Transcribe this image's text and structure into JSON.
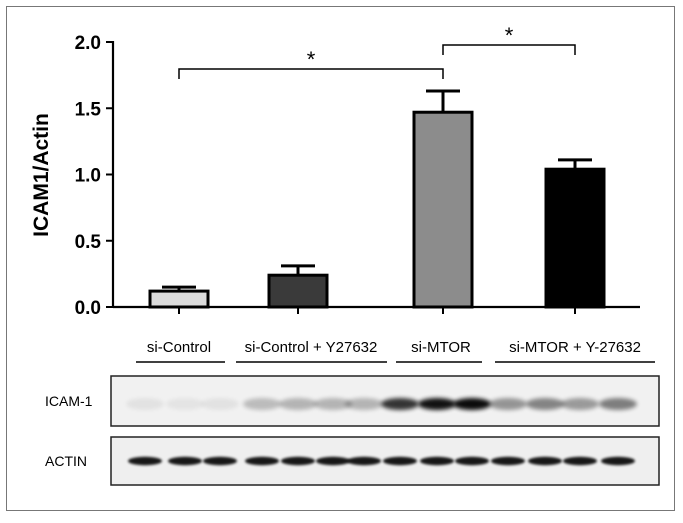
{
  "chart_data": {
    "type": "bar",
    "ylabel": "ICAM1/Actin",
    "ylim": [
      0,
      2.0
    ],
    "yticks": [
      "0.0",
      "0.5",
      "1.0",
      "1.5",
      "2.0"
    ],
    "categories": [
      "si-Control",
      "si-Control + Y27632",
      "si-MTOR",
      "si-MTOR + Y-27632"
    ],
    "values": [
      0.12,
      0.24,
      1.47,
      1.04
    ],
    "errors": [
      0.03,
      0.07,
      0.16,
      0.07
    ],
    "bar_colors": [
      "#dcdcdc",
      "#3a3a3a",
      "#8c8c8c",
      "#000000"
    ],
    "significance": [
      {
        "from": 0,
        "to": 2,
        "label": "*"
      },
      {
        "from": 2,
        "to": 3,
        "label": "*"
      }
    ]
  },
  "blot": {
    "group_labels": [
      "si-Control",
      "si-Control + Y27632",
      "si-MTOR",
      "si-MTOR + Y-27632"
    ],
    "rows": [
      {
        "label": "ICAM-1"
      },
      {
        "label": "ACTIN"
      }
    ]
  }
}
